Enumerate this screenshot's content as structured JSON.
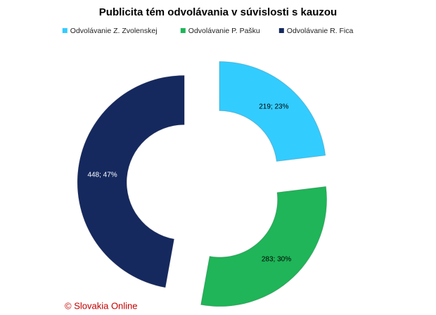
{
  "chart_data": {
    "type": "donut",
    "title": "Publicita tém odvolávania v súvislosti s kauzou",
    "series": [
      {
        "name": "Odvolávanie Z. Zvolenskej",
        "color": "#33ccff",
        "values": [
          219
        ],
        "value_labels": [
          "219; 23%"
        ]
      },
      {
        "name": "Odvolávanie P. Pašku",
        "color": "#1fb558",
        "values": [
          283
        ],
        "value_labels": [
          "283; 30%"
        ]
      },
      {
        "name": "Odvolávanie R. Fica",
        "color": "#15295f",
        "values": [
          448
        ],
        "value_labels": [
          "448; 47%"
        ]
      }
    ],
    "legend": "top",
    "footer": "© Slovakia Online"
  }
}
